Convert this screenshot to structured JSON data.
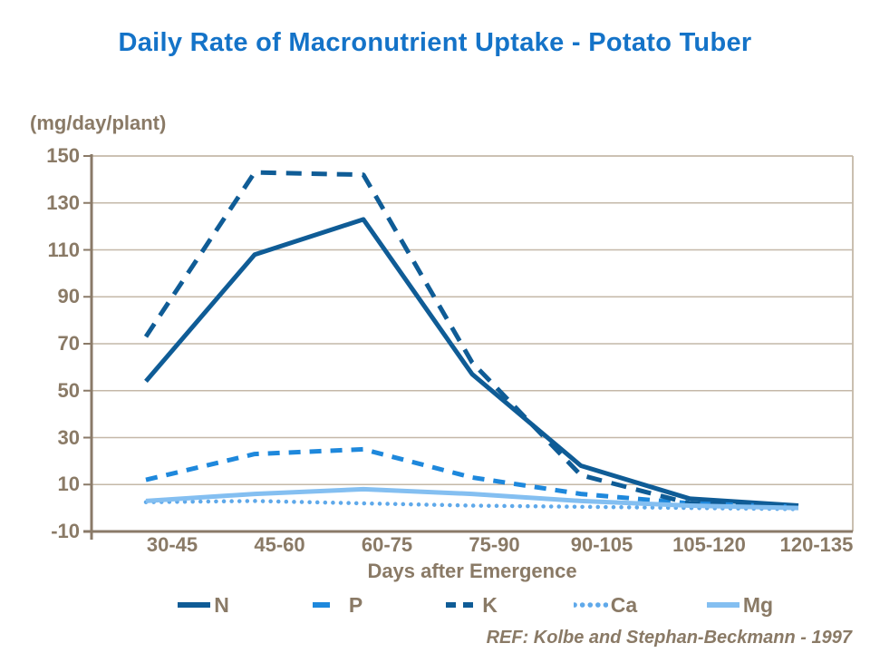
{
  "colors": {
    "title": "#1473C8",
    "axis_text": "#8A7A66",
    "axis_line": "#8A7A68",
    "gridline": "#C4B8A8",
    "background": "#FFFFFF"
  },
  "chart_data": {
    "type": "line",
    "title": "Daily Rate of Macronutrient Uptake - Potato Tuber",
    "ylabel": "(mg/day/plant)",
    "xlabel": "Days after Emergence",
    "footnote": "REF: Kolbe and Stephan-Beckmann - 1997",
    "categories": [
      "30-45",
      "45-60",
      "60-75",
      "75-90",
      "90-105",
      "105-120",
      "120-135"
    ],
    "ylim": [
      -10,
      150
    ],
    "yticks": [
      150,
      130,
      110,
      90,
      70,
      50,
      30,
      10,
      -10
    ],
    "grid": "horizontal-only",
    "legend_position": "bottom",
    "series": [
      {
        "name": "N",
        "color": "#0F5C96",
        "style": "solid",
        "width": 5,
        "dash": "",
        "legend_dash": "",
        "values": [
          54,
          108,
          123,
          57,
          18,
          4,
          1
        ]
      },
      {
        "name": "P",
        "color": "#1E88DC",
        "style": "dashed",
        "width": 5,
        "dash": "13 10",
        "legend_dash": "19 20",
        "values": [
          12,
          23,
          25,
          13,
          6,
          2,
          0.5
        ]
      },
      {
        "name": "K",
        "color": "#0F5C96",
        "style": "dashed",
        "width": 5,
        "dash": "17 11",
        "legend_dash": "11 8",
        "values": [
          73,
          143,
          142,
          62,
          14,
          2,
          0.5
        ]
      },
      {
        "name": "Ca",
        "color": "#5FA9EA",
        "style": "dotted",
        "width": 4.5,
        "dash": "0.1 8.5",
        "legend_dash": "0.1 8.5",
        "values": [
          2.5,
          3,
          2,
          1,
          0.5,
          0,
          -0.5
        ]
      },
      {
        "name": "Mg",
        "color": "#84BFF1",
        "style": "solid",
        "width": 5,
        "dash": "",
        "legend_dash": "",
        "values": [
          3,
          6,
          8,
          6,
          3,
          1,
          0
        ]
      }
    ]
  }
}
